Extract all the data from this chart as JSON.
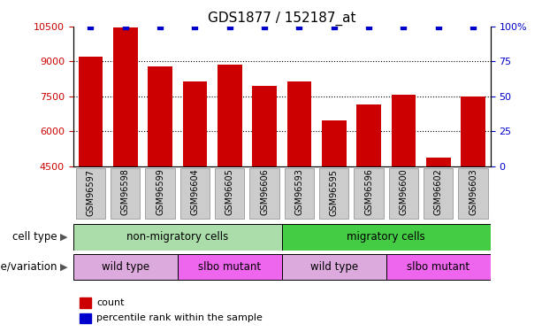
{
  "title": "GDS1877 / 152187_at",
  "samples": [
    "GSM96597",
    "GSM96598",
    "GSM96599",
    "GSM96604",
    "GSM96605",
    "GSM96606",
    "GSM96593",
    "GSM96595",
    "GSM96596",
    "GSM96600",
    "GSM96602",
    "GSM96603"
  ],
  "counts": [
    9200,
    10450,
    8800,
    8150,
    8850,
    7950,
    8150,
    6450,
    7150,
    7550,
    4850,
    7500
  ],
  "percentiles": [
    100,
    100,
    100,
    100,
    100,
    100,
    100,
    100,
    100,
    100,
    100,
    100
  ],
  "ylim_left": [
    4500,
    10500
  ],
  "ylim_right": [
    0,
    100
  ],
  "yticks_left": [
    4500,
    6000,
    7500,
    9000,
    10500
  ],
  "yticks_right": [
    0,
    25,
    50,
    75,
    100
  ],
  "ytick_labels_right": [
    "0",
    "25",
    "50",
    "75",
    "100%"
  ],
  "bar_color": "#cc0000",
  "marker_color": "#0000cc",
  "grid_color": "#000000",
  "background_color": "#ffffff",
  "cell_type_groups": [
    {
      "label": "non-migratory cells",
      "start": 0,
      "end": 5,
      "color": "#aaddaa"
    },
    {
      "label": "migratory cells",
      "start": 6,
      "end": 11,
      "color": "#44cc44"
    }
  ],
  "genotype_groups": [
    {
      "label": "wild type",
      "start": 0,
      "end": 2,
      "color": "#ddaadd"
    },
    {
      "label": "slbo mutant",
      "start": 3,
      "end": 5,
      "color": "#ee66ee"
    },
    {
      "label": "wild type",
      "start": 6,
      "end": 8,
      "color": "#ddaadd"
    },
    {
      "label": "slbo mutant",
      "start": 9,
      "end": 11,
      "color": "#ee66ee"
    }
  ],
  "tick_label_color_left": "#cc0000",
  "tick_label_color_right": "#0000cc",
  "title_fontsize": 11,
  "tick_fontsize": 8,
  "annotation_fontsize": 9,
  "legend_fontsize": 8,
  "xtick_bg_color": "#cccccc"
}
